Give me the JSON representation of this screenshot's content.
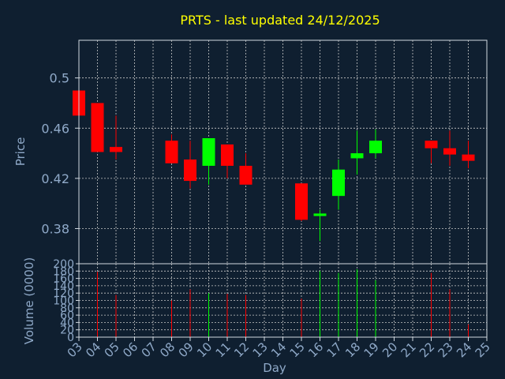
{
  "chart_data": {
    "type": "candlestick",
    "title": "PRTS - last updated 24/12/2025",
    "xlabel": "Day",
    "ylabel_price": "Price",
    "ylabel_volume": "Volume (0000)",
    "price_ticks": [
      "0.5",
      "0.46",
      "0.42",
      "0.38"
    ],
    "price_tick_values": [
      0.5,
      0.46,
      0.42,
      0.38
    ],
    "price_ylim": [
      0.352,
      0.53
    ],
    "volume_ticks": [
      "0",
      "20",
      "40",
      "60",
      "80",
      "100",
      "120",
      "140",
      "160",
      "180",
      "200"
    ],
    "volume_ylim": [
      0,
      200
    ],
    "x_tick_labels": [
      "03",
      "04",
      "05",
      "06",
      "07",
      "08",
      "09",
      "10",
      "11",
      "12",
      "13",
      "14",
      "15",
      "16",
      "17",
      "18",
      "19",
      "20",
      "21",
      "22",
      "23",
      "24",
      "25"
    ],
    "x_range": [
      3,
      25
    ],
    "grid": true,
    "colors": {
      "background": "#0f1f30",
      "up": "#00ff00",
      "down": "#ff0000",
      "title": "#ffff00",
      "axis_text": "#8fa9c8",
      "frame": "#d0d8e0",
      "grid": "#c8c8c8"
    },
    "candles": [
      {
        "day": 3,
        "open": 0.49,
        "close": 0.47,
        "high": 0.49,
        "low": 0.47,
        "volume": 5
      },
      {
        "day": 4,
        "open": 0.48,
        "close": 0.441,
        "high": 0.48,
        "low": 0.441,
        "volume": 178
      },
      {
        "day": 5,
        "open": 0.445,
        "close": 0.441,
        "high": 0.47,
        "low": 0.435,
        "volume": 115
      },
      {
        "day": 8,
        "open": 0.45,
        "close": 0.432,
        "high": 0.455,
        "low": 0.432,
        "volume": 100
      },
      {
        "day": 9,
        "open": 0.435,
        "close": 0.418,
        "high": 0.45,
        "low": 0.412,
        "volume": 130
      },
      {
        "day": 10,
        "open": 0.43,
        "close": 0.452,
        "high": 0.452,
        "low": 0.415,
        "volume": 120
      },
      {
        "day": 11,
        "open": 0.447,
        "close": 0.43,
        "high": 0.447,
        "low": 0.42,
        "volume": 118
      },
      {
        "day": 12,
        "open": 0.43,
        "close": 0.415,
        "high": 0.44,
        "low": 0.415,
        "volume": 115
      },
      {
        "day": 15,
        "open": 0.416,
        "close": 0.387,
        "high": 0.416,
        "low": 0.386,
        "volume": 105
      },
      {
        "day": 16,
        "open": 0.39,
        "close": 0.392,
        "high": 0.395,
        "low": 0.37,
        "volume": 180
      },
      {
        "day": 17,
        "open": 0.406,
        "close": 0.427,
        "high": 0.435,
        "low": 0.395,
        "volume": 175
      },
      {
        "day": 18,
        "open": 0.436,
        "close": 0.44,
        "high": 0.458,
        "low": 0.423,
        "volume": 185
      },
      {
        "day": 19,
        "open": 0.44,
        "close": 0.45,
        "high": 0.459,
        "low": 0.436,
        "volume": 155
      },
      {
        "day": 22,
        "open": 0.45,
        "close": 0.444,
        "high": 0.45,
        "low": 0.432,
        "volume": 175
      },
      {
        "day": 23,
        "open": 0.444,
        "close": 0.439,
        "high": 0.458,
        "low": 0.43,
        "volume": 130
      },
      {
        "day": 24,
        "open": 0.439,
        "close": 0.434,
        "high": 0.45,
        "low": 0.428,
        "volume": 35
      }
    ]
  }
}
